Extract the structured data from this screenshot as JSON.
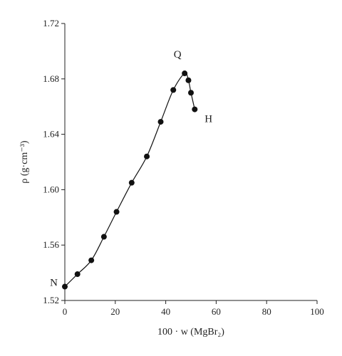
{
  "chart_data": {
    "type": "line",
    "xlabel": "100 · w (MgBr₂)",
    "ylabel": "ρ (g·cm⁻³)",
    "xlim": [
      0,
      100
    ],
    "ylim": [
      1.52,
      1.72
    ],
    "x_ticks": [
      0,
      20,
      40,
      60,
      80,
      100
    ],
    "y_ticks": [
      1.52,
      1.56,
      1.6,
      1.64,
      1.68,
      1.72
    ],
    "x_tick_labels": [
      "0",
      "20",
      "40",
      "60",
      "80",
      "100"
    ],
    "y_tick_labels": [
      "1.52",
      "1.56",
      "1.60",
      "1.64",
      "1.68",
      "1.72"
    ],
    "grid": false,
    "series": [
      {
        "x": [
          0,
          5,
          10.5,
          15.5,
          20.5,
          26.5,
          32.5,
          38,
          43,
          47.5,
          49,
          50,
          51.5
        ],
        "y": [
          1.53,
          1.539,
          1.549,
          1.566,
          1.584,
          1.605,
          1.624,
          1.649,
          1.672,
          1.684,
          1.679,
          1.67,
          1.658
        ],
        "marker": "filled-circle",
        "color": "#111111"
      }
    ],
    "annotations": [
      {
        "text": "N",
        "x": 0,
        "y": 1.53
      },
      {
        "text": "Q",
        "x": 47.5,
        "y": 1.684
      },
      {
        "text": "H",
        "x": 51.5,
        "y": 1.658
      }
    ]
  }
}
